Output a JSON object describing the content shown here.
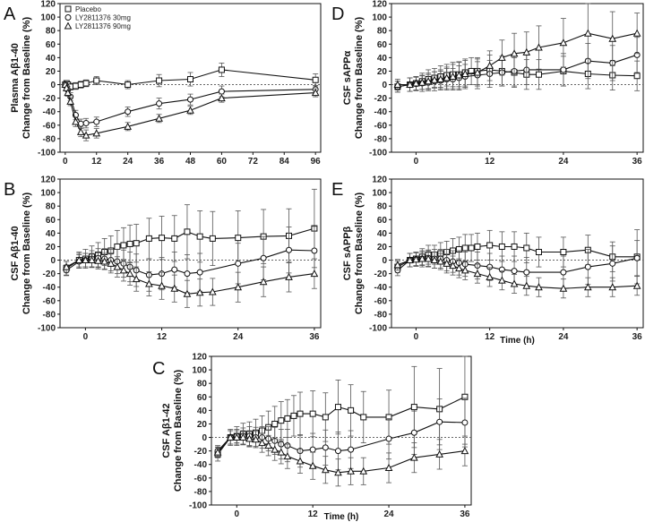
{
  "legend": {
    "entries": [
      {
        "label": "Placebo",
        "marker": "square"
      },
      {
        "label": "LY2811376 30mg",
        "marker": "circle"
      },
      {
        "label": "LY2811376 90mg",
        "marker": "triangle"
      }
    ]
  },
  "chart_data": [
    {
      "letter": "A",
      "type": "line",
      "ylabel_line1": "Plasma Aβ1-40",
      "ylabel_line2": "Change from Baseline (%)",
      "xlabel": "",
      "xlim": [
        -2,
        98
      ],
      "ylim": [
        -100,
        120
      ],
      "xticks": [
        0,
        12,
        24,
        36,
        48,
        60,
        72,
        84,
        96
      ],
      "yticks": [
        -100,
        -80,
        -60,
        -40,
        -20,
        0,
        20,
        40,
        60,
        80,
        100,
        120
      ],
      "series": [
        {
          "name": "Placebo",
          "marker": "square",
          "x": [
            0,
            0.5,
            1,
            2,
            4,
            6,
            8,
            12,
            24,
            36,
            48,
            60,
            96
          ],
          "y": [
            0,
            2,
            0,
            -3,
            -2,
            0,
            2,
            6,
            0,
            6,
            8,
            22,
            7
          ],
          "err": [
            3,
            3,
            4,
            5,
            5,
            5,
            5,
            6,
            6,
            9,
            10,
            10,
            9
          ]
        },
        {
          "name": "LY2811376 30mg",
          "marker": "circle",
          "x": [
            0,
            0.5,
            1,
            2,
            4,
            6,
            8,
            12,
            24,
            36,
            48,
            60,
            96
          ],
          "y": [
            0,
            -3,
            -8,
            -18,
            -45,
            -58,
            -57,
            -55,
            -40,
            -28,
            -22,
            -10,
            -7
          ],
          "err": [
            3,
            4,
            5,
            6,
            7,
            7,
            7,
            7,
            7,
            8,
            8,
            8,
            6
          ]
        },
        {
          "name": "LY2811376 90mg",
          "marker": "triangle",
          "x": [
            0,
            0.5,
            1,
            2,
            4,
            6,
            8,
            12,
            24,
            36,
            48,
            60,
            96
          ],
          "y": [
            0,
            -5,
            -12,
            -25,
            -55,
            -70,
            -75,
            -72,
            -62,
            -50,
            -38,
            -20,
            -12
          ],
          "err": [
            3,
            4,
            5,
            6,
            7,
            7,
            8,
            7,
            6,
            6,
            6,
            6,
            6
          ]
        }
      ]
    },
    {
      "letter": "B",
      "type": "line",
      "ylabel_line1": "CSF Aβ1-40",
      "ylabel_line2": "Change from Baseline (%)",
      "xlabel": "",
      "xlim": [
        -4,
        37
      ],
      "ylim": [
        -100,
        120
      ],
      "xticks": [
        0,
        12,
        24,
        36
      ],
      "yticks": [
        -100,
        -80,
        -60,
        -40,
        -20,
        0,
        20,
        40,
        60,
        80,
        100,
        120
      ],
      "series": [
        {
          "name": "Placebo",
          "marker": "square",
          "x": [
            -3,
            -1,
            0,
            1,
            2,
            3,
            4,
            5,
            6,
            7,
            8,
            10,
            12,
            14,
            16,
            18,
            20,
            24,
            28,
            32,
            36
          ],
          "y": [
            -12,
            0,
            2,
            5,
            8,
            12,
            14,
            20,
            22,
            24,
            25,
            32,
            33,
            32,
            42,
            35,
            32,
            33,
            35,
            36,
            47
          ],
          "err": [
            10,
            12,
            14,
            16,
            18,
            20,
            22,
            24,
            26,
            28,
            28,
            30,
            32,
            34,
            40,
            38,
            40,
            40,
            40,
            40,
            58
          ]
        },
        {
          "name": "LY2811376 30mg",
          "marker": "circle",
          "x": [
            -3,
            -1,
            0,
            1,
            2,
            3,
            4,
            5,
            6,
            7,
            8,
            10,
            12,
            14,
            16,
            18,
            24,
            28,
            32,
            36
          ],
          "y": [
            -15,
            -2,
            0,
            2,
            3,
            2,
            0,
            -2,
            -5,
            -10,
            -15,
            -22,
            -20,
            -14,
            -20,
            -18,
            -5,
            3,
            15,
            14
          ],
          "err": [
            8,
            10,
            10,
            12,
            14,
            15,
            16,
            18,
            20,
            22,
            24,
            24,
            24,
            26,
            28,
            28,
            30,
            32,
            34,
            36
          ]
        },
        {
          "name": "LY2811376 90mg",
          "marker": "triangle",
          "x": [
            -3,
            -1,
            0,
            1,
            2,
            3,
            4,
            5,
            6,
            7,
            8,
            10,
            12,
            14,
            16,
            18,
            20,
            24,
            28,
            32,
            36
          ],
          "y": [
            -10,
            0,
            0,
            0,
            -1,
            -2,
            -5,
            -10,
            -15,
            -20,
            -28,
            -35,
            -38,
            -42,
            -50,
            -48,
            -47,
            -40,
            -32,
            -25,
            -20
          ],
          "err": [
            8,
            10,
            10,
            10,
            12,
            12,
            14,
            15,
            16,
            17,
            18,
            18,
            20,
            20,
            20,
            20,
            20,
            22,
            22,
            22,
            22
          ]
        }
      ]
    },
    {
      "letter": "C",
      "type": "line",
      "ylabel_line1": "CSF Aβ1-42",
      "ylabel_line2": "Change from Baseline (%)",
      "xlabel": "Time (h)",
      "xlim": [
        -4,
        37
      ],
      "ylim": [
        -100,
        120
      ],
      "xticks": [
        0,
        12,
        24,
        36
      ],
      "yticks": [
        -100,
        -80,
        -60,
        -40,
        -20,
        0,
        20,
        40,
        60,
        80,
        100,
        120
      ],
      "series": [
        {
          "name": "Placebo",
          "marker": "square",
          "x": [
            -3,
            -1,
            0,
            1,
            2,
            3,
            4,
            5,
            6,
            7,
            8,
            9,
            10,
            12,
            14,
            16,
            18,
            20,
            24,
            28,
            32,
            36
          ],
          "y": [
            -25,
            0,
            2,
            5,
            5,
            7,
            10,
            15,
            20,
            25,
            28,
            32,
            35,
            35,
            30,
            45,
            40,
            30,
            30,
            45,
            42,
            60
          ],
          "err": [
            10,
            12,
            14,
            16,
            18,
            20,
            22,
            24,
            26,
            28,
            28,
            30,
            32,
            34,
            36,
            40,
            38,
            38,
            40,
            60,
            60,
            70
          ]
        },
        {
          "name": "LY2811376 30mg",
          "marker": "circle",
          "x": [
            -3,
            -1,
            0,
            1,
            2,
            3,
            4,
            5,
            6,
            7,
            8,
            10,
            12,
            14,
            16,
            18,
            24,
            28,
            32,
            36
          ],
          "y": [
            -20,
            0,
            2,
            2,
            2,
            0,
            0,
            -2,
            -5,
            -10,
            -12,
            -20,
            -18,
            -15,
            -20,
            -18,
            -2,
            7,
            23,
            22
          ],
          "err": [
            8,
            10,
            10,
            12,
            14,
            15,
            16,
            18,
            20,
            22,
            24,
            24,
            24,
            26,
            28,
            28,
            30,
            32,
            34,
            36
          ]
        },
        {
          "name": "LY2811376 90mg",
          "marker": "triangle",
          "x": [
            -3,
            -1,
            0,
            1,
            2,
            3,
            4,
            5,
            6,
            7,
            8,
            10,
            12,
            14,
            16,
            18,
            20,
            24,
            28,
            32,
            36
          ],
          "y": [
            -22,
            0,
            0,
            0,
            -2,
            -3,
            -8,
            -12,
            -18,
            -22,
            -28,
            -35,
            -42,
            -48,
            -52,
            -50,
            -50,
            -45,
            -30,
            -25,
            -20
          ],
          "err": [
            8,
            10,
            10,
            10,
            12,
            12,
            14,
            15,
            16,
            17,
            18,
            18,
            20,
            20,
            20,
            20,
            20,
            22,
            22,
            22,
            22
          ]
        }
      ]
    },
    {
      "letter": "D",
      "type": "line",
      "ylabel_line1": "CSF sAPPα",
      "ylabel_line2": "Change from Baseline (%)",
      "xlabel": "",
      "xlim": [
        -4,
        37
      ],
      "ylim": [
        -100,
        120
      ],
      "xticks": [
        0,
        12,
        24,
        36
      ],
      "yticks": [
        -100,
        -80,
        -60,
        -40,
        -20,
        0,
        20,
        40,
        60,
        80,
        100,
        120
      ],
      "series": [
        {
          "name": "Placebo",
          "marker": "square",
          "x": [
            -3,
            -1,
            0,
            1,
            2,
            3,
            4,
            5,
            6,
            7,
            8,
            9,
            10,
            12,
            14,
            16,
            18,
            20,
            24,
            28,
            32,
            36
          ],
          "y": [
            -3,
            0,
            2,
            5,
            8,
            10,
            12,
            14,
            15,
            15,
            18,
            20,
            20,
            22,
            20,
            18,
            15,
            15,
            20,
            16,
            14,
            13
          ],
          "err": [
            8,
            10,
            10,
            12,
            14,
            14,
            16,
            16,
            18,
            18,
            20,
            20,
            20,
            22,
            22,
            22,
            22,
            22,
            22,
            22,
            22,
            22
          ]
        },
        {
          "name": "LY2811376 30mg",
          "marker": "circle",
          "x": [
            -3,
            -1,
            0,
            1,
            2,
            3,
            4,
            5,
            6,
            7,
            8,
            10,
            12,
            14,
            16,
            18,
            24,
            28,
            32,
            36
          ],
          "y": [
            -3,
            0,
            1,
            2,
            3,
            5,
            6,
            8,
            8,
            10,
            12,
            14,
            16,
            18,
            20,
            22,
            22,
            35,
            32,
            44
          ],
          "err": [
            8,
            10,
            10,
            12,
            12,
            14,
            14,
            16,
            16,
            18,
            18,
            20,
            20,
            20,
            22,
            22,
            24,
            26,
            26,
            26
          ]
        },
        {
          "name": "LY2811376 90mg",
          "marker": "triangle",
          "x": [
            -3,
            -1,
            0,
            1,
            2,
            3,
            4,
            5,
            6,
            7,
            8,
            10,
            12,
            14,
            16,
            18,
            20,
            24,
            28,
            32,
            36
          ],
          "y": [
            0,
            0,
            2,
            3,
            5,
            7,
            8,
            10,
            12,
            14,
            16,
            18,
            28,
            40,
            46,
            48,
            55,
            62,
            76,
            68,
            76
          ],
          "err": [
            8,
            10,
            10,
            10,
            12,
            12,
            14,
            16,
            18,
            20,
            20,
            20,
            22,
            26,
            30,
            30,
            32,
            36,
            44,
            40,
            30
          ]
        }
      ]
    },
    {
      "letter": "E",
      "type": "line",
      "ylabel_line1": "CSF sAPPβ",
      "ylabel_line2": "Change from Baseline (%)",
      "xlabel": "Time (h)",
      "xlim": [
        -4,
        37
      ],
      "ylim": [
        -100,
        120
      ],
      "xticks": [
        0,
        12,
        24,
        36
      ],
      "yticks": [
        -100,
        -80,
        -60,
        -40,
        -20,
        0,
        20,
        40,
        60,
        80,
        100,
        120
      ],
      "series": [
        {
          "name": "Placebo",
          "marker": "square",
          "x": [
            -3,
            -1,
            0,
            1,
            2,
            3,
            4,
            5,
            6,
            7,
            8,
            9,
            10,
            12,
            14,
            16,
            18,
            20,
            24,
            28,
            32,
            36
          ],
          "y": [
            -10,
            0,
            2,
            5,
            8,
            8,
            10,
            12,
            14,
            16,
            18,
            18,
            20,
            22,
            20,
            20,
            18,
            12,
            12,
            15,
            5,
            5
          ],
          "err": [
            8,
            10,
            10,
            12,
            14,
            14,
            16,
            16,
            18,
            18,
            20,
            20,
            20,
            22,
            22,
            22,
            22,
            22,
            22,
            22,
            22,
            40
          ]
        },
        {
          "name": "LY2811376 30mg",
          "marker": "circle",
          "x": [
            -3,
            -1,
            0,
            1,
            2,
            3,
            4,
            5,
            6,
            7,
            8,
            10,
            12,
            14,
            16,
            18,
            24,
            28,
            32,
            36
          ],
          "y": [
            -15,
            0,
            1,
            2,
            3,
            2,
            2,
            0,
            -2,
            -4,
            -6,
            -8,
            -10,
            -14,
            -16,
            -18,
            -18,
            -10,
            -5,
            3
          ],
          "err": [
            8,
            10,
            10,
            12,
            12,
            14,
            14,
            16,
            16,
            18,
            18,
            20,
            20,
            20,
            22,
            22,
            24,
            26,
            26,
            26
          ]
        },
        {
          "name": "LY2811376 90mg",
          "marker": "triangle",
          "x": [
            -3,
            -1,
            0,
            1,
            2,
            3,
            4,
            5,
            6,
            7,
            8,
            10,
            12,
            14,
            16,
            18,
            20,
            24,
            28,
            32,
            36
          ],
          "y": [
            -7,
            0,
            1,
            2,
            2,
            0,
            -2,
            -5,
            -8,
            -12,
            -15,
            -20,
            -25,
            -30,
            -35,
            -38,
            -40,
            -42,
            -40,
            -40,
            -38
          ],
          "err": [
            8,
            10,
            10,
            10,
            12,
            12,
            12,
            14,
            14,
            14,
            14,
            14,
            14,
            14,
            14,
            14,
            14,
            14,
            14,
            14,
            14
          ]
        }
      ]
    }
  ]
}
